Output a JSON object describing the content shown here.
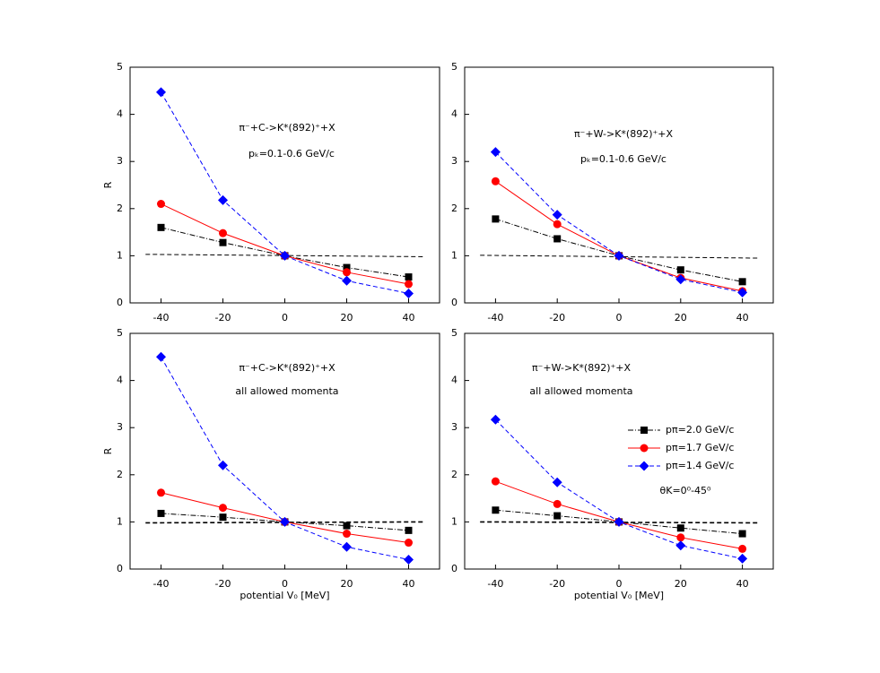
{
  "chart_data": [
    {
      "type": "line",
      "x": [
        -40,
        -20,
        0,
        20,
        40
      ],
      "xlim": [
        -50,
        50
      ],
      "ylim": [
        0,
        5
      ],
      "xticks": [
        -40,
        -20,
        0,
        20,
        40
      ],
      "yticks": [
        0,
        1,
        2,
        3,
        4,
        5
      ],
      "ylabel": "R",
      "annotations": [
        "π⁻+C->K*(892)⁺+X",
        "pₖ=0.1-0.6 GeV/c"
      ],
      "reference_line": {
        "x": [
          -45,
          45
        ],
        "values": [
          1.03,
          0.98
        ]
      },
      "series": [
        {
          "color": "#000000",
          "marker": "square",
          "linestyle": "dashdot",
          "values": [
            1.6,
            1.28,
            1.0,
            0.75,
            0.55
          ]
        },
        {
          "color": "#ff0000",
          "marker": "circle",
          "linestyle": "solid",
          "values": [
            2.1,
            1.48,
            1.0,
            0.65,
            0.4
          ]
        },
        {
          "color": "#0000ff",
          "marker": "diamond",
          "linestyle": "dashed",
          "values": [
            4.47,
            2.18,
            1.0,
            0.47,
            0.2
          ]
        }
      ]
    },
    {
      "type": "line",
      "x": [
        -40,
        -20,
        0,
        20,
        40
      ],
      "xlim": [
        -50,
        50
      ],
      "ylim": [
        0,
        5
      ],
      "xticks": [
        -40,
        -20,
        0,
        20,
        40
      ],
      "yticks": [
        0,
        1,
        2,
        3,
        4,
        5
      ],
      "annotations": [
        "π⁻+W->K*(892)⁺+X",
        "pₖ=0.1-0.6 GeV/c"
      ],
      "reference_line": {
        "x": [
          -45,
          45
        ],
        "values": [
          1.01,
          0.95
        ]
      },
      "series": [
        {
          "color": "#000000",
          "marker": "square",
          "linestyle": "dashdot",
          "values": [
            1.78,
            1.36,
            1.0,
            0.7,
            0.45
          ]
        },
        {
          "color": "#ff0000",
          "marker": "circle",
          "linestyle": "solid",
          "values": [
            2.58,
            1.67,
            1.0,
            0.53,
            0.25
          ]
        },
        {
          "color": "#0000ff",
          "marker": "diamond",
          "linestyle": "dashed",
          "values": [
            3.2,
            1.87,
            1.0,
            0.5,
            0.22
          ]
        }
      ]
    },
    {
      "type": "line",
      "x": [
        -40,
        -20,
        0,
        20,
        40
      ],
      "xlim": [
        -50,
        50
      ],
      "ylim": [
        0,
        5
      ],
      "xticks": [
        -40,
        -20,
        0,
        20,
        40
      ],
      "yticks": [
        0,
        1,
        2,
        3,
        4,
        5
      ],
      "ylabel": "R",
      "xlabel": "potential V₀ [MeV]",
      "annotations": [
        "π⁻+C->K*(892)⁺+X",
        "all allowed momenta"
      ],
      "reference_line": {
        "x": [
          -45,
          45
        ],
        "values": [
          0.98,
          1.0
        ]
      },
      "series": [
        {
          "color": "#000000",
          "marker": "square",
          "linestyle": "dashdot",
          "values": [
            1.18,
            1.1,
            1.0,
            0.92,
            0.82
          ]
        },
        {
          "color": "#ff0000",
          "marker": "circle",
          "linestyle": "solid",
          "values": [
            1.62,
            1.3,
            1.0,
            0.75,
            0.56
          ]
        },
        {
          "color": "#0000ff",
          "marker": "diamond",
          "linestyle": "dashed",
          "values": [
            4.5,
            2.2,
            1.0,
            0.47,
            0.2
          ]
        }
      ]
    },
    {
      "type": "line",
      "x": [
        -40,
        -20,
        0,
        20,
        40
      ],
      "xlim": [
        -50,
        50
      ],
      "ylim": [
        0,
        5
      ],
      "xticks": [
        -40,
        -20,
        0,
        20,
        40
      ],
      "yticks": [
        0,
        1,
        2,
        3,
        4,
        5
      ],
      "xlabel": "potential V₀ [MeV]",
      "annotations": [
        "π⁻+W->K*(892)⁺+X",
        "all allowed momenta",
        "θK=0⁰-45⁰"
      ],
      "legend": "right",
      "reference_line": {
        "x": [
          -45,
          45
        ],
        "values": [
          1.0,
          0.98
        ]
      },
      "series": [
        {
          "name": "pπ=2.0 GeV/c",
          "color": "#000000",
          "marker": "square",
          "linestyle": "dashdot",
          "values": [
            1.25,
            1.13,
            1.0,
            0.87,
            0.75
          ]
        },
        {
          "name": "pπ=1.7 GeV/c",
          "color": "#ff0000",
          "marker": "circle",
          "linestyle": "solid",
          "values": [
            1.86,
            1.38,
            1.0,
            0.67,
            0.43
          ]
        },
        {
          "name": "pπ=1.4 GeV/c",
          "color": "#0000ff",
          "marker": "diamond",
          "linestyle": "dashed",
          "values": [
            3.17,
            1.84,
            1.0,
            0.5,
            0.22
          ]
        }
      ]
    }
  ]
}
